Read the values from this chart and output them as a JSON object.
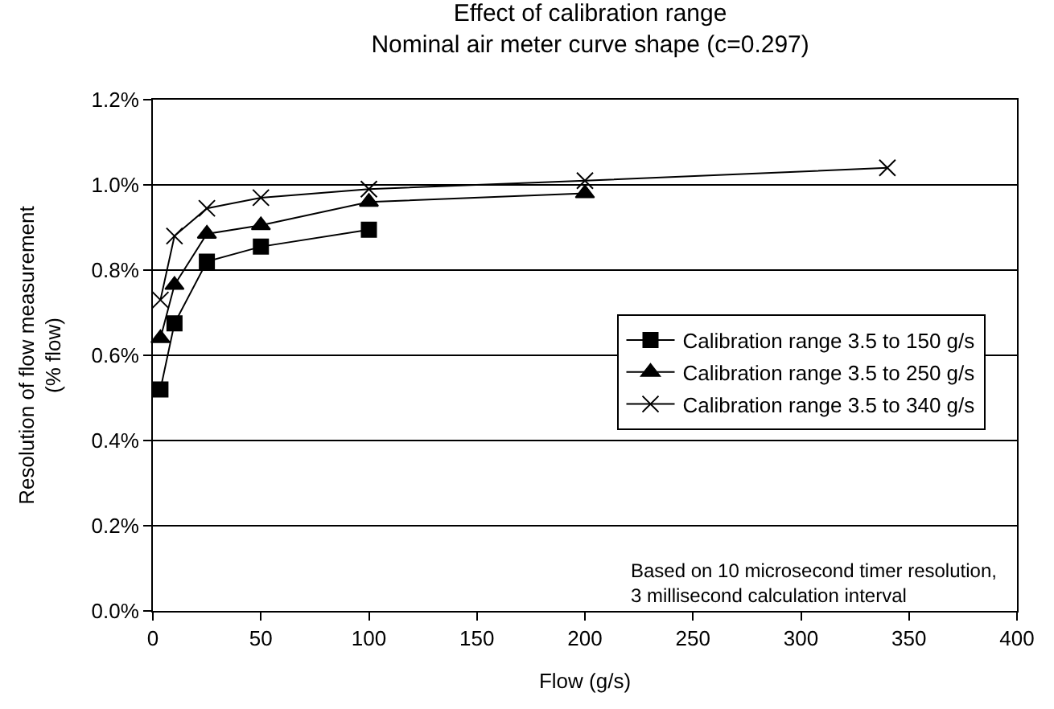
{
  "chart_data": {
    "type": "line",
    "title": "Effect of calibration range\nNominal air meter curve shape (c=0.297)",
    "xlabel": "Flow (g/s)",
    "ylabel": "Resolution of flow measurement\n(% flow)",
    "xlim": [
      0,
      400
    ],
    "xticks": [
      0,
      50,
      100,
      150,
      200,
      250,
      300,
      350,
      400
    ],
    "ylim": [
      0,
      1.2
    ],
    "yticks": [
      {
        "value": 0,
        "label": "0.0%"
      },
      {
        "value": 0.2,
        "label": "0.2%"
      },
      {
        "value": 0.4,
        "label": "0.4%"
      },
      {
        "value": 0.6,
        "label": "0.6%"
      },
      {
        "value": 0.8,
        "label": "0.8%"
      },
      {
        "value": 1.0,
        "label": "1.0%"
      },
      {
        "value": 1.2,
        "label": "1.2%"
      }
    ],
    "grid": "y",
    "legend": "right",
    "line_style": "solid",
    "annotations": [
      "Based on 10 microsecond timer resolution,\n3 millisecond calculation interval"
    ],
    "series": [
      {
        "name": "Calibration range 3.5 to 150 g/s",
        "color": "#000000",
        "marker": "square",
        "x": [
          3.5,
          10,
          25,
          50,
          100
        ],
        "values": [
          0.52,
          0.675,
          0.82,
          0.855,
          0.895
        ]
      },
      {
        "name": "Calibration range 3.5 to 250 g/s",
        "color": "#000000",
        "marker": "triangle",
        "x": [
          3.5,
          10,
          25,
          50,
          100,
          200
        ],
        "values": [
          0.64,
          0.765,
          0.885,
          0.905,
          0.96,
          0.98
        ]
      },
      {
        "name": "Calibration range 3.5 to 340 g/s",
        "color": "#000000",
        "marker": "cross",
        "x": [
          3.5,
          10,
          25,
          50,
          100,
          200,
          340
        ],
        "values": [
          0.73,
          0.88,
          0.945,
          0.97,
          0.99,
          1.01,
          1.04
        ]
      }
    ]
  }
}
